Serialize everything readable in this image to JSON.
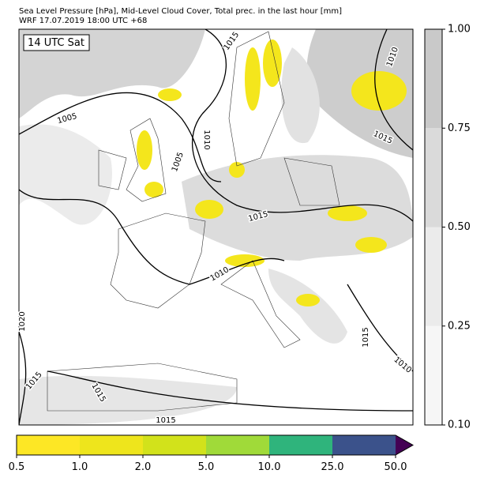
{
  "header": {
    "title": "Sea Level Pressure [hPa], Mid-Level Cloud Cover, Total prec. in the last hour [mm]",
    "subtitle": "WRF 17.07.2019 18:00 UTC +68"
  },
  "map": {
    "time_label": "14 UTC Sat",
    "isobar_labels": [
      "1015",
      "1005",
      "1010",
      "1005",
      "1010",
      "1015",
      "1015",
      "1010",
      "1020",
      "1015",
      "1015",
      "1015",
      "1015",
      "1010"
    ]
  },
  "cloud_colorbar": {
    "ticks": [
      {
        "value": 0.1,
        "label": "0.10"
      },
      {
        "value": 0.25,
        "label": "0.25"
      },
      {
        "value": 0.5,
        "label": "0.50"
      },
      {
        "value": 0.75,
        "label": "0.75"
      },
      {
        "value": 1,
        "label": "1.00"
      }
    ],
    "colors": [
      "#f6f6f6",
      "#ebebeb",
      "#dadada",
      "#c9c9c9"
    ]
  },
  "precip_colorbar": {
    "ticks": [
      0.5,
      {
        "value": 1,
        "label": "1.0"
      },
      {
        "value": 2,
        "label": "2.0"
      },
      {
        "value": 5,
        "label": "5.0"
      },
      {
        "value": 10,
        "label": "10.0"
      },
      {
        "value": 25,
        "label": "25.0"
      },
      {
        "value": 50,
        "label": "50.0"
      }
    ],
    "colors": [
      "#fde725",
      "#eee51c",
      "#d2e21b",
      "#a0da39",
      "#2fb47c",
      "#3b528b"
    ],
    "extend_color": "#440154"
  }
}
